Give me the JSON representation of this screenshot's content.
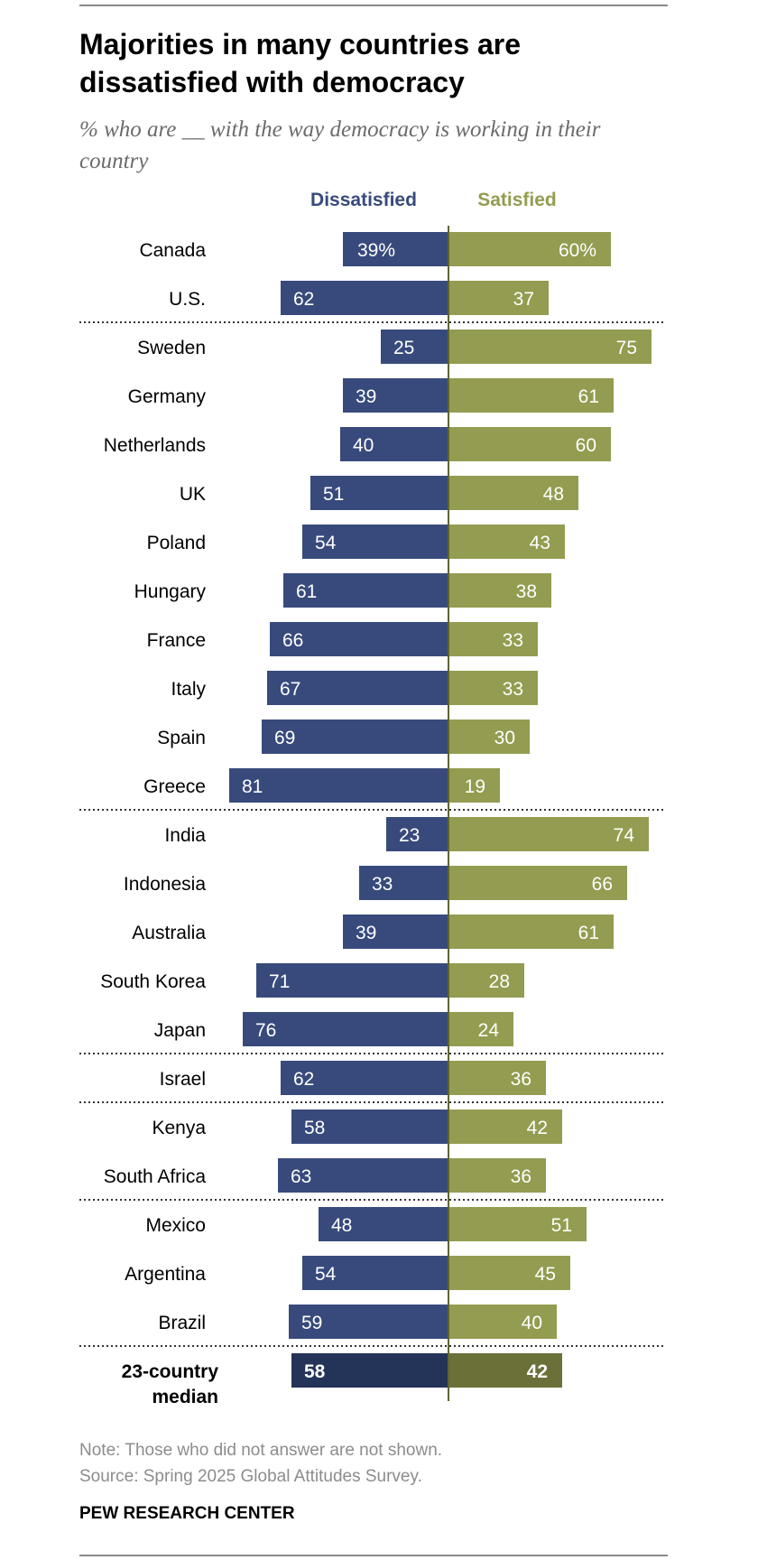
{
  "title": "Majorities in many countries are dissatisfied with democracy",
  "subtitle": "% who are __ with the way democracy is working in their country",
  "note": "Note: Those who did not answer are not shown.",
  "source": "Source: Spring 2025 Global Attitudes Survey.",
  "brand": "PEW RESEARCH CENTER",
  "colors": {
    "dissatisfied": "#384a7c",
    "satisfied": "#939c50",
    "dissatisfied_median": "#243358",
    "satisfied_median": "#6b7038",
    "center_line": "#5f6531",
    "separator": "#333333"
  },
  "chart_data": {
    "type": "bar",
    "orientation": "horizontal-diverging",
    "series": [
      {
        "name": "Dissatisfied",
        "values": [
          39,
          62,
          25,
          39,
          40,
          51,
          54,
          61,
          66,
          67,
          69,
          81,
          23,
          33,
          39,
          71,
          76,
          62,
          58,
          63,
          48,
          54,
          59,
          58
        ]
      },
      {
        "name": "Satisfied",
        "values": [
          60,
          37,
          75,
          61,
          60,
          48,
          43,
          38,
          33,
          33,
          30,
          19,
          74,
          66,
          61,
          28,
          24,
          36,
          42,
          36,
          51,
          45,
          40,
          42
        ]
      }
    ],
    "categories": [
      "Canada",
      "U.S.",
      "Sweden",
      "Germany",
      "Netherlands",
      "UK",
      "Poland",
      "Hungary",
      "France",
      "Italy",
      "Spain",
      "Greece",
      "India",
      "Indonesia",
      "Australia",
      "South Korea",
      "Japan",
      "Israel",
      "Kenya",
      "South Africa",
      "Mexico",
      "Argentina",
      "Brazil",
      "23-country median"
    ],
    "first_row_labels": [
      "39%",
      "60%"
    ],
    "group_separators_after": [
      1,
      11,
      16,
      17,
      19,
      22
    ],
    "highlight_last_row": true,
    "xlim": [
      -100,
      100
    ]
  }
}
